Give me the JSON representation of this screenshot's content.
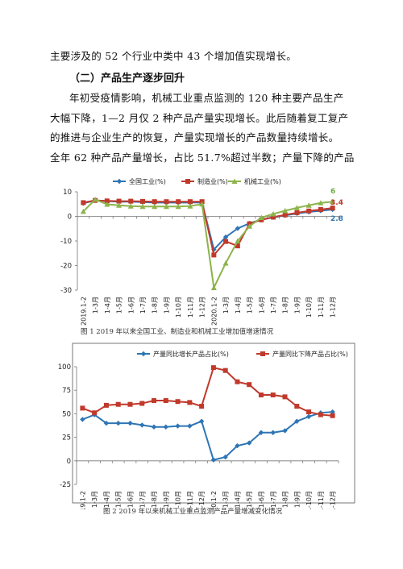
{
  "text": {
    "line_intro": "主要涉及的 52 个行业中类中 43 个增加值实现增长。",
    "heading": "（二）产品生产逐步回升",
    "para": [
      "年初受疫情影响，机械工业重点监测的 120 种主要产品生产",
      "大幅下降，1—2 月仅 2 种产品产量实现增长。此后随着复工复产",
      "的推进与企业生产的恢复，产量实现增长的产品数量持续增长。",
      "全年 62 种产品产量增长，占比 51.7%超过半数；产量下降的产品"
    ],
    "caption1": "图 1   2019 年以来全国工业、制造业和机械工业增加值增速情况",
    "caption2": "图 2   2019 年以来机械工业重点监测产品产量增减变化情况"
  },
  "chart_data": [
    {
      "type": "line",
      "categories": [
        "2019.1-2",
        "1-3月",
        "1-4月",
        "1-5月",
        "1-6月",
        "1-7月",
        "1-8月",
        "1-9月",
        "1-10月",
        "1-11月",
        "1-12月",
        "2020.1-2",
        "1-3月",
        "1-4月",
        "1-5月",
        "1-6月",
        "1-7月",
        "1-8月",
        "1-9月",
        "1-10月",
        "1-11月",
        "1-12月"
      ],
      "ylim": [
        -30,
        10
      ],
      "yticks": [
        10,
        0,
        -10,
        -20,
        -30
      ],
      "legend": "top",
      "grid": false,
      "series": [
        {
          "name": "全国工业(%)",
          "color": "#2e75b6",
          "marker": "diamond",
          "values": [
            5.3,
            6.5,
            6.2,
            6.0,
            6.0,
            5.8,
            5.6,
            5.6,
            5.6,
            5.6,
            5.7,
            -13.5,
            -8.4,
            -4.9,
            -2.8,
            -1.3,
            -0.4,
            0.4,
            1.2,
            1.8,
            2.3,
            2.8
          ]
        },
        {
          "name": "制造业(%)",
          "color": "#c0392b",
          "marker": "square",
          "values": [
            5.6,
            6.5,
            6.3,
            6.2,
            6.2,
            6.1,
            6.0,
            6.0,
            6.0,
            6.0,
            6.0,
            -15.7,
            -10.2,
            -12.0,
            -3.0,
            -1.4,
            -0.3,
            0.6,
            1.5,
            2.2,
            2.8,
            3.4
          ]
        },
        {
          "name": "机械工业(%)",
          "color": "#8db34b",
          "marker": "triangle",
          "values": [
            2.0,
            6.9,
            4.9,
            4.5,
            4.2,
            4.0,
            4.0,
            4.0,
            4.0,
            4.2,
            5.0,
            -29.0,
            -19.0,
            -10.0,
            -4.0,
            -0.5,
            1.0,
            2.3,
            3.5,
            4.5,
            5.5,
            6.0
          ]
        }
      ],
      "end_labels": [
        {
          "text": "6",
          "color": "#70ad47"
        },
        {
          "text": "3.4",
          "color": "#c0392b"
        },
        {
          "text": "2.8",
          "color": "#2e75b6"
        }
      ]
    },
    {
      "type": "line",
      "categories": [
        "2019.1-2",
        "1-3月",
        "1-4月",
        "1-5月",
        "1-6月",
        "1-7月",
        "1-8月",
        "1-9月",
        "1-10月",
        "1-11月",
        "1-12月",
        "2020.1-2",
        "1-3月",
        "1-4月",
        "1-5月",
        "1-6月",
        "1-7月",
        "1-8月",
        "1-9月",
        "1-10月",
        "1-11月",
        "1-12月"
      ],
      "ylim": [
        -25,
        100
      ],
      "yticks": [
        100,
        75,
        50,
        25,
        0,
        -25
      ],
      "legend": "top",
      "grid": false,
      "series": [
        {
          "name": "产量同比增长产品占比(%)",
          "color": "#2e75b6",
          "marker": "diamond",
          "values": [
            44,
            49,
            40,
            40,
            40,
            38,
            36,
            36,
            37,
            37,
            42,
            1,
            4,
            16,
            19,
            30,
            30,
            32,
            42,
            47,
            51,
            52
          ]
        },
        {
          "name": "产量同比下降产品占比(%)",
          "color": "#c0392b",
          "marker": "square",
          "values": [
            56,
            51,
            59,
            60,
            60,
            61,
            64,
            64,
            63,
            62,
            58,
            99,
            96,
            84,
            81,
            70,
            70,
            68,
            58,
            52,
            49,
            48
          ]
        }
      ]
    }
  ]
}
